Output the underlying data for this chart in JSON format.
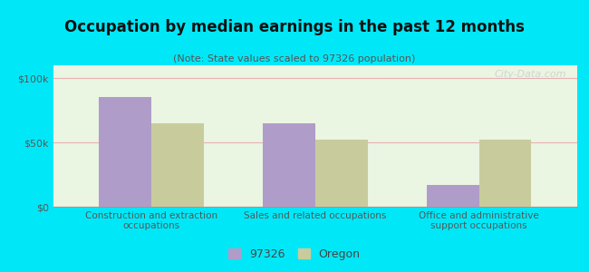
{
  "title": "Occupation by median earnings in the past 12 months",
  "subtitle": "(Note: State values scaled to 97326 population)",
  "categories": [
    "Construction and extraction\noccupations",
    "Sales and related occupations",
    "Office and administrative\nsupport occupations"
  ],
  "values_97326": [
    85000,
    65000,
    17000
  ],
  "values_oregon": [
    65000,
    52000,
    52000
  ],
  "color_97326": "#b09cc8",
  "color_oregon": "#c8cc9c",
  "ylim": [
    0,
    110000
  ],
  "yticks": [
    0,
    50000,
    100000
  ],
  "ytick_labels": [
    "$0",
    "$50k",
    "$100k"
  ],
  "plot_bg_color": "#eaf5e2",
  "outer_background": "#00e8f8",
  "legend_labels": [
    "97326",
    "Oregon"
  ],
  "bar_width": 0.32,
  "watermark": "City-Data.com"
}
